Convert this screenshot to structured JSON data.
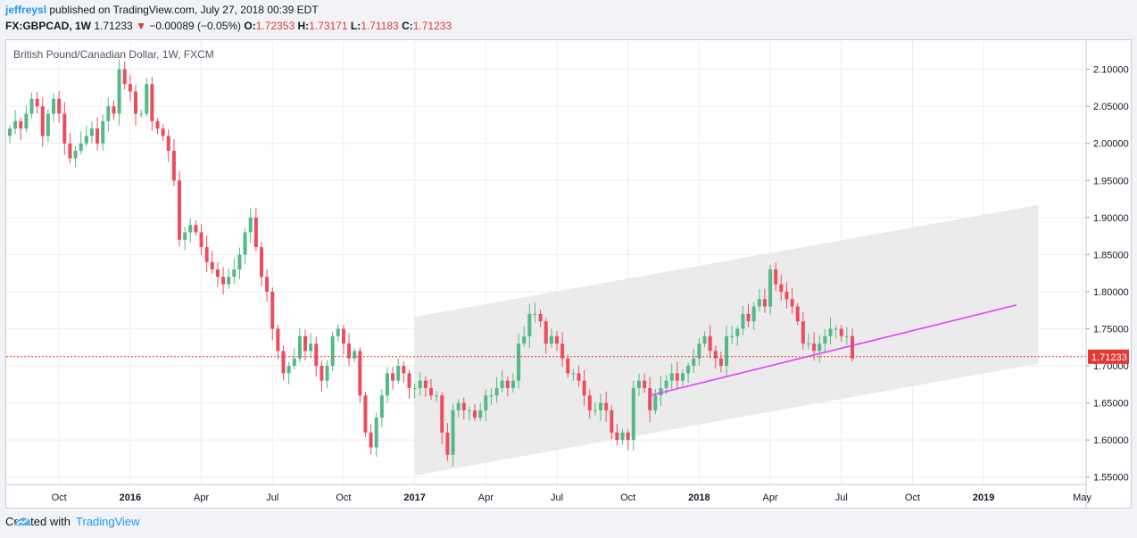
{
  "header": {
    "author": "jeffreysl",
    "published": "published on TradingView.com, July 27, 2018 00:39 EDT",
    "symbol": "FX:GBPCAD, 1W",
    "last": "1.71233",
    "arrow": "▼",
    "change": "−0.00089 (−0.05%)",
    "o_label": "O:",
    "o_value": "1.72353",
    "h_label": "H:",
    "h_value": "1.73171",
    "l_label": "L:",
    "l_value": "1.71183",
    "c_label": "C:",
    "c_value": "1.71233"
  },
  "footer": {
    "created_with": "Created with",
    "brand": "TradingView"
  },
  "colors": {
    "up": "#53b987",
    "down": "#eb4d5c",
    "channel": "#e8e8e8",
    "trendline": "#e040fb",
    "price_line": "#e53935",
    "price_label_bg": "#e53935"
  },
  "chart_data": {
    "type": "candlestick",
    "title": "British Pound/Canadian Dollar, 1W, FXCM",
    "ylim": [
      1.54,
      2.12
    ],
    "y_ticks": [
      "2.10000",
      "2.05000",
      "2.00000",
      "1.95000",
      "1.90000",
      "1.85000",
      "1.80000",
      "1.75000",
      "1.70000",
      "1.65000",
      "1.60000",
      "1.55000"
    ],
    "y_tick_values": [
      2.1,
      2.05,
      2.0,
      1.95,
      1.9,
      1.85,
      1.8,
      1.75,
      1.7,
      1.65,
      1.6,
      1.55
    ],
    "x_ticks": [
      {
        "label": "Oct",
        "week": 9,
        "bold": false
      },
      {
        "label": "2016",
        "week": 22,
        "bold": true
      },
      {
        "label": "Apr",
        "week": 35,
        "bold": false
      },
      {
        "label": "Jul",
        "week": 48,
        "bold": false
      },
      {
        "label": "Oct",
        "week": 61,
        "bold": false
      },
      {
        "label": "2017",
        "week": 74,
        "bold": true
      },
      {
        "label": "Apr",
        "week": 87,
        "bold": false
      },
      {
        "label": "Jul",
        "week": 100,
        "bold": false
      },
      {
        "label": "Oct",
        "week": 113,
        "bold": false
      },
      {
        "label": "2018",
        "week": 126,
        "bold": true
      },
      {
        "label": "Apr",
        "week": 139,
        "bold": false
      },
      {
        "label": "Jul",
        "week": 152,
        "bold": false
      },
      {
        "label": "Oct",
        "week": 165,
        "bold": false
      },
      {
        "label": "2019",
        "week": 178,
        "bold": true
      },
      {
        "label": "May",
        "week": 196,
        "bold": false
      }
    ],
    "last_price": 1.71233,
    "last_price_label": "1.71233",
    "closes": [
      2.02,
      2.03,
      2.02,
      2.04,
      2.06,
      2.05,
      2.01,
      2.04,
      2.06,
      2.04,
      2.0,
      1.98,
      1.99,
      2.0,
      2.01,
      2.02,
      2.0,
      2.03,
      2.05,
      2.04,
      2.1,
      2.08,
      2.07,
      2.04,
      2.04,
      2.08,
      2.03,
      2.02,
      2.01,
      1.99,
      1.95,
      1.87,
      1.88,
      1.89,
      1.88,
      1.86,
      1.84,
      1.83,
      1.82,
      1.81,
      1.82,
      1.83,
      1.85,
      1.88,
      1.9,
      1.86,
      1.82,
      1.8,
      1.75,
      1.72,
      1.69,
      1.7,
      1.71,
      1.74,
      1.72,
      1.73,
      1.7,
      1.68,
      1.7,
      1.74,
      1.75,
      1.73,
      1.71,
      1.72,
      1.66,
      1.61,
      1.59,
      1.63,
      1.66,
      1.69,
      1.68,
      1.7,
      1.69,
      1.67,
      1.67,
      1.68,
      1.67,
      1.66,
      1.66,
      1.61,
      1.58,
      1.64,
      1.65,
      1.64,
      1.64,
      1.63,
      1.64,
      1.66,
      1.66,
      1.67,
      1.68,
      1.67,
      1.68,
      1.73,
      1.74,
      1.77,
      1.77,
      1.76,
      1.73,
      1.74,
      1.73,
      1.71,
      1.69,
      1.69,
      1.68,
      1.66,
      1.64,
      1.64,
      1.65,
      1.64,
      1.61,
      1.6,
      1.61,
      1.6,
      1.67,
      1.68,
      1.67,
      1.64,
      1.66,
      1.67,
      1.68,
      1.69,
      1.68,
      1.69,
      1.7,
      1.71,
      1.73,
      1.74,
      1.72,
      1.71,
      1.7,
      1.74,
      1.74,
      1.75,
      1.77,
      1.76,
      1.78,
      1.79,
      1.78,
      1.83,
      1.81,
      1.8,
      1.79,
      1.78,
      1.76,
      1.73,
      1.73,
      1.72,
      1.73,
      1.74,
      1.75,
      1.75,
      1.74,
      1.74,
      1.71
    ],
    "channel": {
      "upper": [
        {
          "week": 74,
          "price": 1.766
        },
        {
          "week": 188,
          "price": 1.917
        }
      ],
      "lower": [
        {
          "week": 74,
          "price": 1.552
        },
        {
          "week": 188,
          "price": 1.703
        }
      ]
    },
    "trendline": [
      {
        "week": 117,
        "price": 1.66
      },
      {
        "week": 184,
        "price": 1.782
      }
    ],
    "grid": true,
    "scale": "right"
  }
}
